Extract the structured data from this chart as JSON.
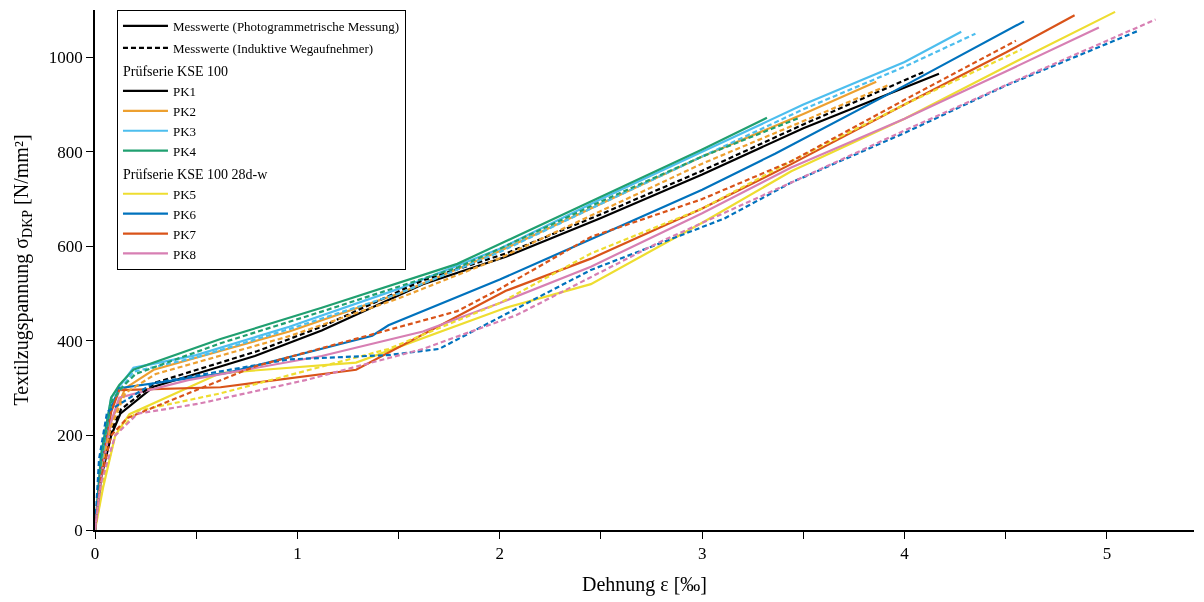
{
  "chart_data": {
    "type": "line",
    "xlabel": "Dehnung ε [‰]",
    "ylabel": "Textilzugspannung σ$_{DKP}$ [N/mm²]",
    "xlim": [
      0,
      5.43
    ],
    "ylim": [
      0,
      1100
    ],
    "xticks": [
      0,
      {
        "value": 0.5,
        "label": null
      },
      1,
      {
        "value": 1.5,
        "label": null
      },
      2,
      {
        "value": 2.5,
        "label": null
      },
      3,
      {
        "value": 3.5,
        "label": null
      },
      4,
      {
        "value": 4.5,
        "label": null
      },
      5
    ],
    "yticks": [
      0,
      200,
      400,
      600,
      800,
      1000
    ],
    "legend": "top left",
    "marker": "none",
    "annotations": [
      "Prüfserie KSE 100",
      "Prüfserie KSE 100 28d-w"
    ],
    "series": [
      {
        "name": "Messwerte (Photogrammetrische Messung)",
        "color": "#000000",
        "line_style": "solid"
      },
      {
        "name": "Messwerte (Induktive Wegaufnehmer)",
        "color": "#000000",
        "line_style": "dashed"
      },
      {
        "name": "PK1",
        "color": "#000000",
        "line_style": "solid",
        "x": [
          0,
          0.03,
          0.08,
          0.125,
          0.29,
          0.79,
          1.12,
          1.62,
          2.03,
          2.5,
          3.0,
          3.5,
          4.17
        ],
        "values": [
          0,
          110,
          200,
          246,
          303,
          368,
          422,
          520,
          578,
          660,
          752,
          850,
          965
        ]
      },
      {
        "name": "PK2",
        "color": "#EDA030",
        "line_style": "solid",
        "x": [
          0,
          0.03,
          0.08,
          0.15,
          0.29,
          0.96,
          1.5,
          2.0,
          2.5,
          3.0,
          3.5,
          3.86
        ],
        "values": [
          0,
          130,
          230,
          300,
          339,
          420,
          500,
          590,
          690,
          790,
          880,
          948
        ]
      },
      {
        "name": "PK3",
        "color": "#4DBEEE",
        "line_style": "solid",
        "x": [
          0,
          0.03,
          0.08,
          0.19,
          0.5,
          0.96,
          1.5,
          2.0,
          2.5,
          3.0,
          3.5,
          4.0,
          4.28
        ],
        "values": [
          0,
          150,
          280,
          343,
          370,
          430,
          510,
          595,
          700,
          800,
          900,
          990,
          1054
        ]
      },
      {
        "name": "PK4",
        "color": "#20A070",
        "line_style": "solid",
        "x": [
          0,
          0.03,
          0.08,
          0.12,
          0.19,
          0.62,
          1.12,
          1.79,
          2.0,
          2.5,
          3.0,
          3.32
        ],
        "values": [
          0,
          160,
          280,
          307,
          339,
          404,
          470,
          563,
          605,
          705,
          805,
          872
        ]
      },
      {
        "name": "PK5",
        "color": "#EEDD30",
        "line_style": "solid",
        "x": [
          0,
          0.04,
          0.1,
          0.17,
          0.62,
          1.29,
          2.03,
          2.45,
          3.0,
          3.44,
          4.0,
          4.5,
          5.04
        ],
        "values": [
          0,
          90,
          200,
          245,
          332,
          354,
          470,
          520,
          650,
          759,
          870,
          980,
          1096
        ]
      },
      {
        "name": "PK6",
        "color": "#0072BD",
        "line_style": "solid",
        "x": [
          0,
          0.03,
          0.08,
          0.12,
          0.66,
          1.37,
          1.45,
          2.0,
          2.45,
          3.0,
          3.36,
          4.0,
          4.59
        ],
        "values": [
          0,
          130,
          260,
          300,
          333,
          411,
          433,
          530,
          615,
          720,
          796,
          940,
          1076
        ]
      },
      {
        "name": "PK7",
        "color": "#D95319",
        "line_style": "solid",
        "x": [
          0,
          0.03,
          0.08,
          0.12,
          0.62,
          1.29,
          2.03,
          2.45,
          3.0,
          3.44,
          4.0,
          4.5,
          4.84
        ],
        "values": [
          0,
          120,
          250,
          296,
          302,
          339,
          506,
          574,
          680,
          774,
          900,
          1010,
          1089
        ]
      },
      {
        "name": "PK8",
        "color": "#D77FB3",
        "line_style": "solid",
        "x": [
          0,
          0.03,
          0.08,
          0.12,
          0.46,
          1.12,
          1.62,
          2.0,
          2.45,
          3.0,
          3.44,
          4.0,
          4.5,
          4.96
        ],
        "values": [
          0,
          110,
          230,
          280,
          317,
          368,
          420,
          480,
          557,
          670,
          767,
          870,
          970,
          1063
        ]
      },
      {
        "color": "#000000",
        "line_style": "dashed",
        "x": [
          0,
          0.03,
          0.08,
          0.13,
          0.3,
          0.8,
          1.12,
          1.62,
          2.03,
          2.5,
          3.0,
          3.5,
          4.1
        ],
        "values": [
          0,
          120,
          210,
          256,
          312,
          378,
          430,
          528,
          585,
          668,
          760,
          858,
          970
        ]
      },
      {
        "color": "#EDA030",
        "line_style": "dashed",
        "x": [
          0,
          0.03,
          0.08,
          0.15,
          0.3,
          0.96,
          1.5,
          2.0,
          2.5,
          3.0,
          3.5,
          3.92
        ],
        "values": [
          0,
          130,
          220,
          290,
          330,
          410,
          490,
          575,
          675,
          775,
          865,
          941
        ]
      },
      {
        "color": "#4DBEEE",
        "line_style": "dashed",
        "x": [
          0,
          0.03,
          0.08,
          0.19,
          0.5,
          0.96,
          1.5,
          2.0,
          2.5,
          3.0,
          3.5,
          4.0,
          4.35
        ],
        "values": [
          0,
          140,
          270,
          335,
          365,
          425,
          500,
          588,
          690,
          790,
          890,
          980,
          1050
        ]
      },
      {
        "color": "#20A070",
        "line_style": "dashed",
        "x": [
          0,
          0.03,
          0.08,
          0.13,
          0.2,
          0.62,
          1.12,
          1.79,
          2.0,
          2.5,
          3.0,
          3.48
        ],
        "values": [
          0,
          150,
          270,
          300,
          330,
          395,
          462,
          555,
          595,
          695,
          790,
          872
        ]
      },
      {
        "color": "#EEDD30",
        "line_style": "dashed",
        "x": [
          0,
          0.04,
          0.1,
          0.21,
          0.62,
          1.45,
          2.0,
          2.45,
          3.0,
          3.44,
          4.0,
          4.58
        ],
        "values": [
          0,
          100,
          200,
          252,
          289,
          383,
          480,
          585,
          680,
          780,
          900,
          1017
        ]
      },
      {
        "color": "#0072BD",
        "line_style": "dashed",
        "x": [
          0,
          0.02,
          0.06,
          0.29,
          0.96,
          1.45,
          1.7,
          2.0,
          2.45,
          3.11,
          3.44,
          4.0,
          4.5,
          5.16
        ],
        "values": [
          0,
          150,
          250,
          311,
          361,
          370,
          383,
          450,
          550,
          659,
          735,
          840,
          940,
          1057
        ]
      },
      {
        "color": "#D95319",
        "line_style": "dashed",
        "x": [
          0,
          0.03,
          0.08,
          0.16,
          0.79,
          1.79,
          2.0,
          2.45,
          3.0,
          3.44,
          4.0,
          4.55
        ],
        "values": [
          0,
          110,
          200,
          237,
          346,
          463,
          510,
          620,
          700,
          780,
          910,
          1035
        ]
      },
      {
        "color": "#D77FB3",
        "line_style": "dashed",
        "x": [
          0,
          0.03,
          0.1,
          0.21,
          0.51,
          1.04,
          1.62,
          2.08,
          2.78,
          3.44,
          4.0,
          4.6,
          5.24
        ],
        "values": [
          0,
          100,
          200,
          246,
          267,
          317,
          383,
          454,
          607,
          735,
          845,
          960,
          1080
        ]
      }
    ]
  }
}
